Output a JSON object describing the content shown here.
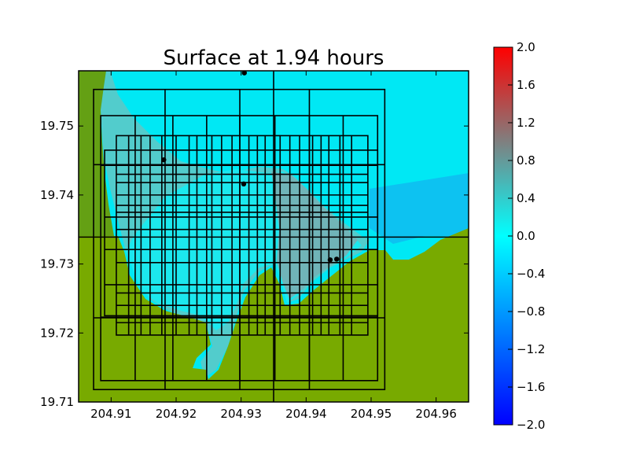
{
  "chart_data": {
    "type": "heatmap",
    "title": "Surface at 1.94 hours",
    "xlabel": "",
    "ylabel": "",
    "xlim": [
      204.905,
      204.965
    ],
    "ylim": [
      19.71,
      19.758
    ],
    "x_ticks": [
      "204.91",
      "204.92",
      "204.93",
      "204.94",
      "204.95",
      "204.96"
    ],
    "y_ticks": [
      "19.71",
      "19.72",
      "19.73",
      "19.74",
      "19.75"
    ],
    "colorbar": {
      "min": -2.0,
      "max": 2.0,
      "ticks": [
        "2.0",
        "1.6",
        "1.2",
        "0.8",
        "0.4",
        "0.0",
        "−0.4",
        "−0.8",
        "−1.2",
        "−1.6",
        "−2.0"
      ],
      "colors": [
        "#0000ff",
        "#00ffff",
        "#ff0000"
      ]
    },
    "colors": {
      "land": "#78a800",
      "land_dark": "#5c9420",
      "shallow_water": "#00f2f2",
      "bay_water": "#4cc8c8",
      "deep_inner_bay": "#74b4b4",
      "offshore": "#10c4f4",
      "grid_line": "#000000"
    },
    "gauges": [
      {
        "x": 204.9305,
        "y": 19.7577
      },
      {
        "x": 204.9181,
        "y": 19.7451
      },
      {
        "x": 204.9304,
        "y": 19.7416
      },
      {
        "x": 204.9437,
        "y": 19.7306
      },
      {
        "x": 204.9447,
        "y": 19.7307
      }
    ],
    "amr_patches": [
      {
        "x0": 204.9073,
        "x1": 204.9521,
        "y0": 19.7118,
        "y1": 19.7553,
        "xdiv": [
          204.9183,
          204.9298,
          204.9405
        ],
        "ydiv": [
          19.7444,
          19.7222
        ]
      },
      {
        "x0": 204.9084,
        "x1": 204.951,
        "y0": 19.7131,
        "y1": 19.7515,
        "xdiv": [
          204.9137,
          204.9195,
          204.9247,
          204.9298,
          204.9352,
          204.9405,
          204.9457
        ],
        "ydiv": [
          19.7443,
          19.7223
        ]
      },
      {
        "x0": 204.909,
        "x1": 204.951,
        "y0": 19.7225,
        "y1": 19.7465,
        "xdiv": [],
        "ydiv": [
          19.7368,
          19.7321,
          19.727
        ]
      },
      {
        "x0": 204.9108,
        "x1": 204.9495,
        "y0": 19.7197,
        "y1": 19.7486,
        "xdiv": [
          204.9127,
          204.9146,
          204.916,
          204.9178,
          204.92,
          204.922,
          204.9232,
          204.9255,
          204.927,
          204.9286,
          204.9312,
          204.9325,
          204.9337,
          204.936,
          204.9375,
          204.939,
          204.941,
          204.9423,
          204.9435,
          204.9452,
          204.947
        ],
        "ydiv": [
          19.743,
          19.7418,
          19.74,
          19.7385,
          19.7375,
          19.735,
          19.7302,
          19.7258,
          19.724,
          19.7215
        ]
      }
    ],
    "split_lines": {
      "x": 204.935,
      "y": 19.7339
    }
  }
}
